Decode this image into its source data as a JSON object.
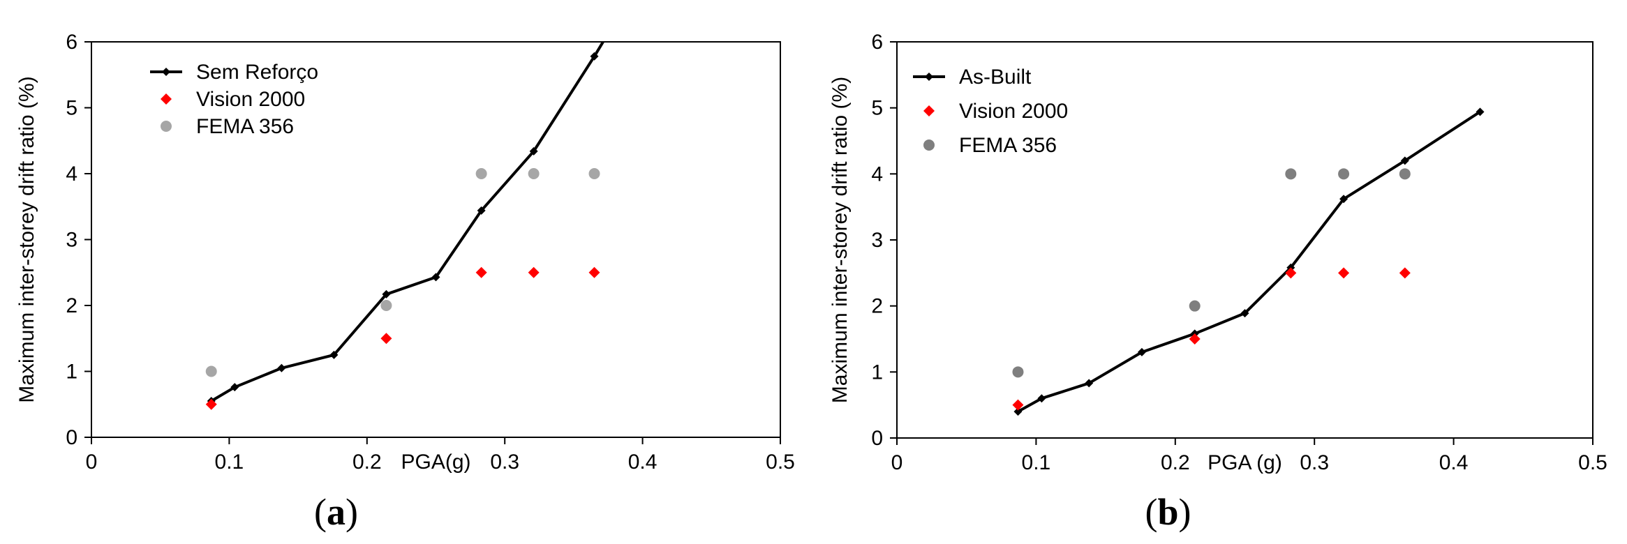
{
  "chart_data": [
    {
      "type": "line",
      "panel_label_open": "(",
      "panel_label": "a",
      "panel_label_close": ")",
      "xlabel": "PGA(g)",
      "ylabel": "Maximum inter-storey drift ratio (%)",
      "xlim": [
        0,
        0.5
      ],
      "ylim": [
        0,
        6
      ],
      "xticks": [
        "0",
        "0.1",
        "0.2",
        "0.3",
        "0.4",
        "0.5"
      ],
      "yticks": [
        "0",
        "1",
        "2",
        "3",
        "4",
        "5",
        "6"
      ],
      "grid": false,
      "legend_position": "top-left",
      "series": [
        {
          "name": "Sem Reforço",
          "kind": "line-marker",
          "color": "#000000",
          "x": [
            0.087,
            0.104,
            0.138,
            0.176,
            0.214,
            0.25,
            0.283,
            0.321,
            0.365,
            0.38
          ],
          "y": [
            0.55,
            0.76,
            1.05,
            1.25,
            2.17,
            2.43,
            3.44,
            4.34,
            5.78,
            6.3
          ]
        },
        {
          "name": "Vision 2000",
          "kind": "diamond",
          "color": "#ff0000",
          "x": [
            0.087,
            0.214,
            0.283,
            0.321,
            0.365
          ],
          "y": [
            0.5,
            1.5,
            2.5,
            2.5,
            2.5
          ]
        },
        {
          "name": "FEMA 356",
          "kind": "circle",
          "color": "#a6a6a6",
          "x": [
            0.087,
            0.214,
            0.283,
            0.321,
            0.365
          ],
          "y": [
            1.0,
            2.0,
            4.0,
            4.0,
            4.0
          ]
        }
      ]
    },
    {
      "type": "line",
      "panel_label_open": "(",
      "panel_label": "b",
      "panel_label_close": ")",
      "xlabel": "PGA (g)",
      "ylabel": "Maximum inter-storey drift ratio (%)",
      "xlim": [
        0,
        0.5
      ],
      "ylim": [
        0,
        6
      ],
      "xticks": [
        "0",
        "0.1",
        "0.2",
        "0.3",
        "0.4",
        "0.5"
      ],
      "yticks": [
        "0",
        "1",
        "2",
        "3",
        "4",
        "5",
        "6"
      ],
      "grid": false,
      "legend_position": "top-left",
      "series": [
        {
          "name": "As-Built",
          "kind": "line-marker",
          "color": "#000000",
          "x": [
            0.087,
            0.104,
            0.138,
            0.176,
            0.214,
            0.25,
            0.283,
            0.321,
            0.365,
            0.419
          ],
          "y": [
            0.4,
            0.6,
            0.83,
            1.3,
            1.58,
            1.89,
            2.58,
            3.62,
            4.2,
            4.94
          ]
        },
        {
          "name": "Vision 2000",
          "kind": "diamond",
          "color": "#ff0000",
          "x": [
            0.087,
            0.214,
            0.283,
            0.321,
            0.365
          ],
          "y": [
            0.5,
            1.5,
            2.5,
            2.5,
            2.5
          ]
        },
        {
          "name": "FEMA 356",
          "kind": "circle",
          "color": "#7f7f7f",
          "x": [
            0.087,
            0.214,
            0.283,
            0.321,
            0.365
          ],
          "y": [
            1.0,
            2.0,
            4.0,
            4.0,
            4.0
          ]
        }
      ]
    }
  ]
}
